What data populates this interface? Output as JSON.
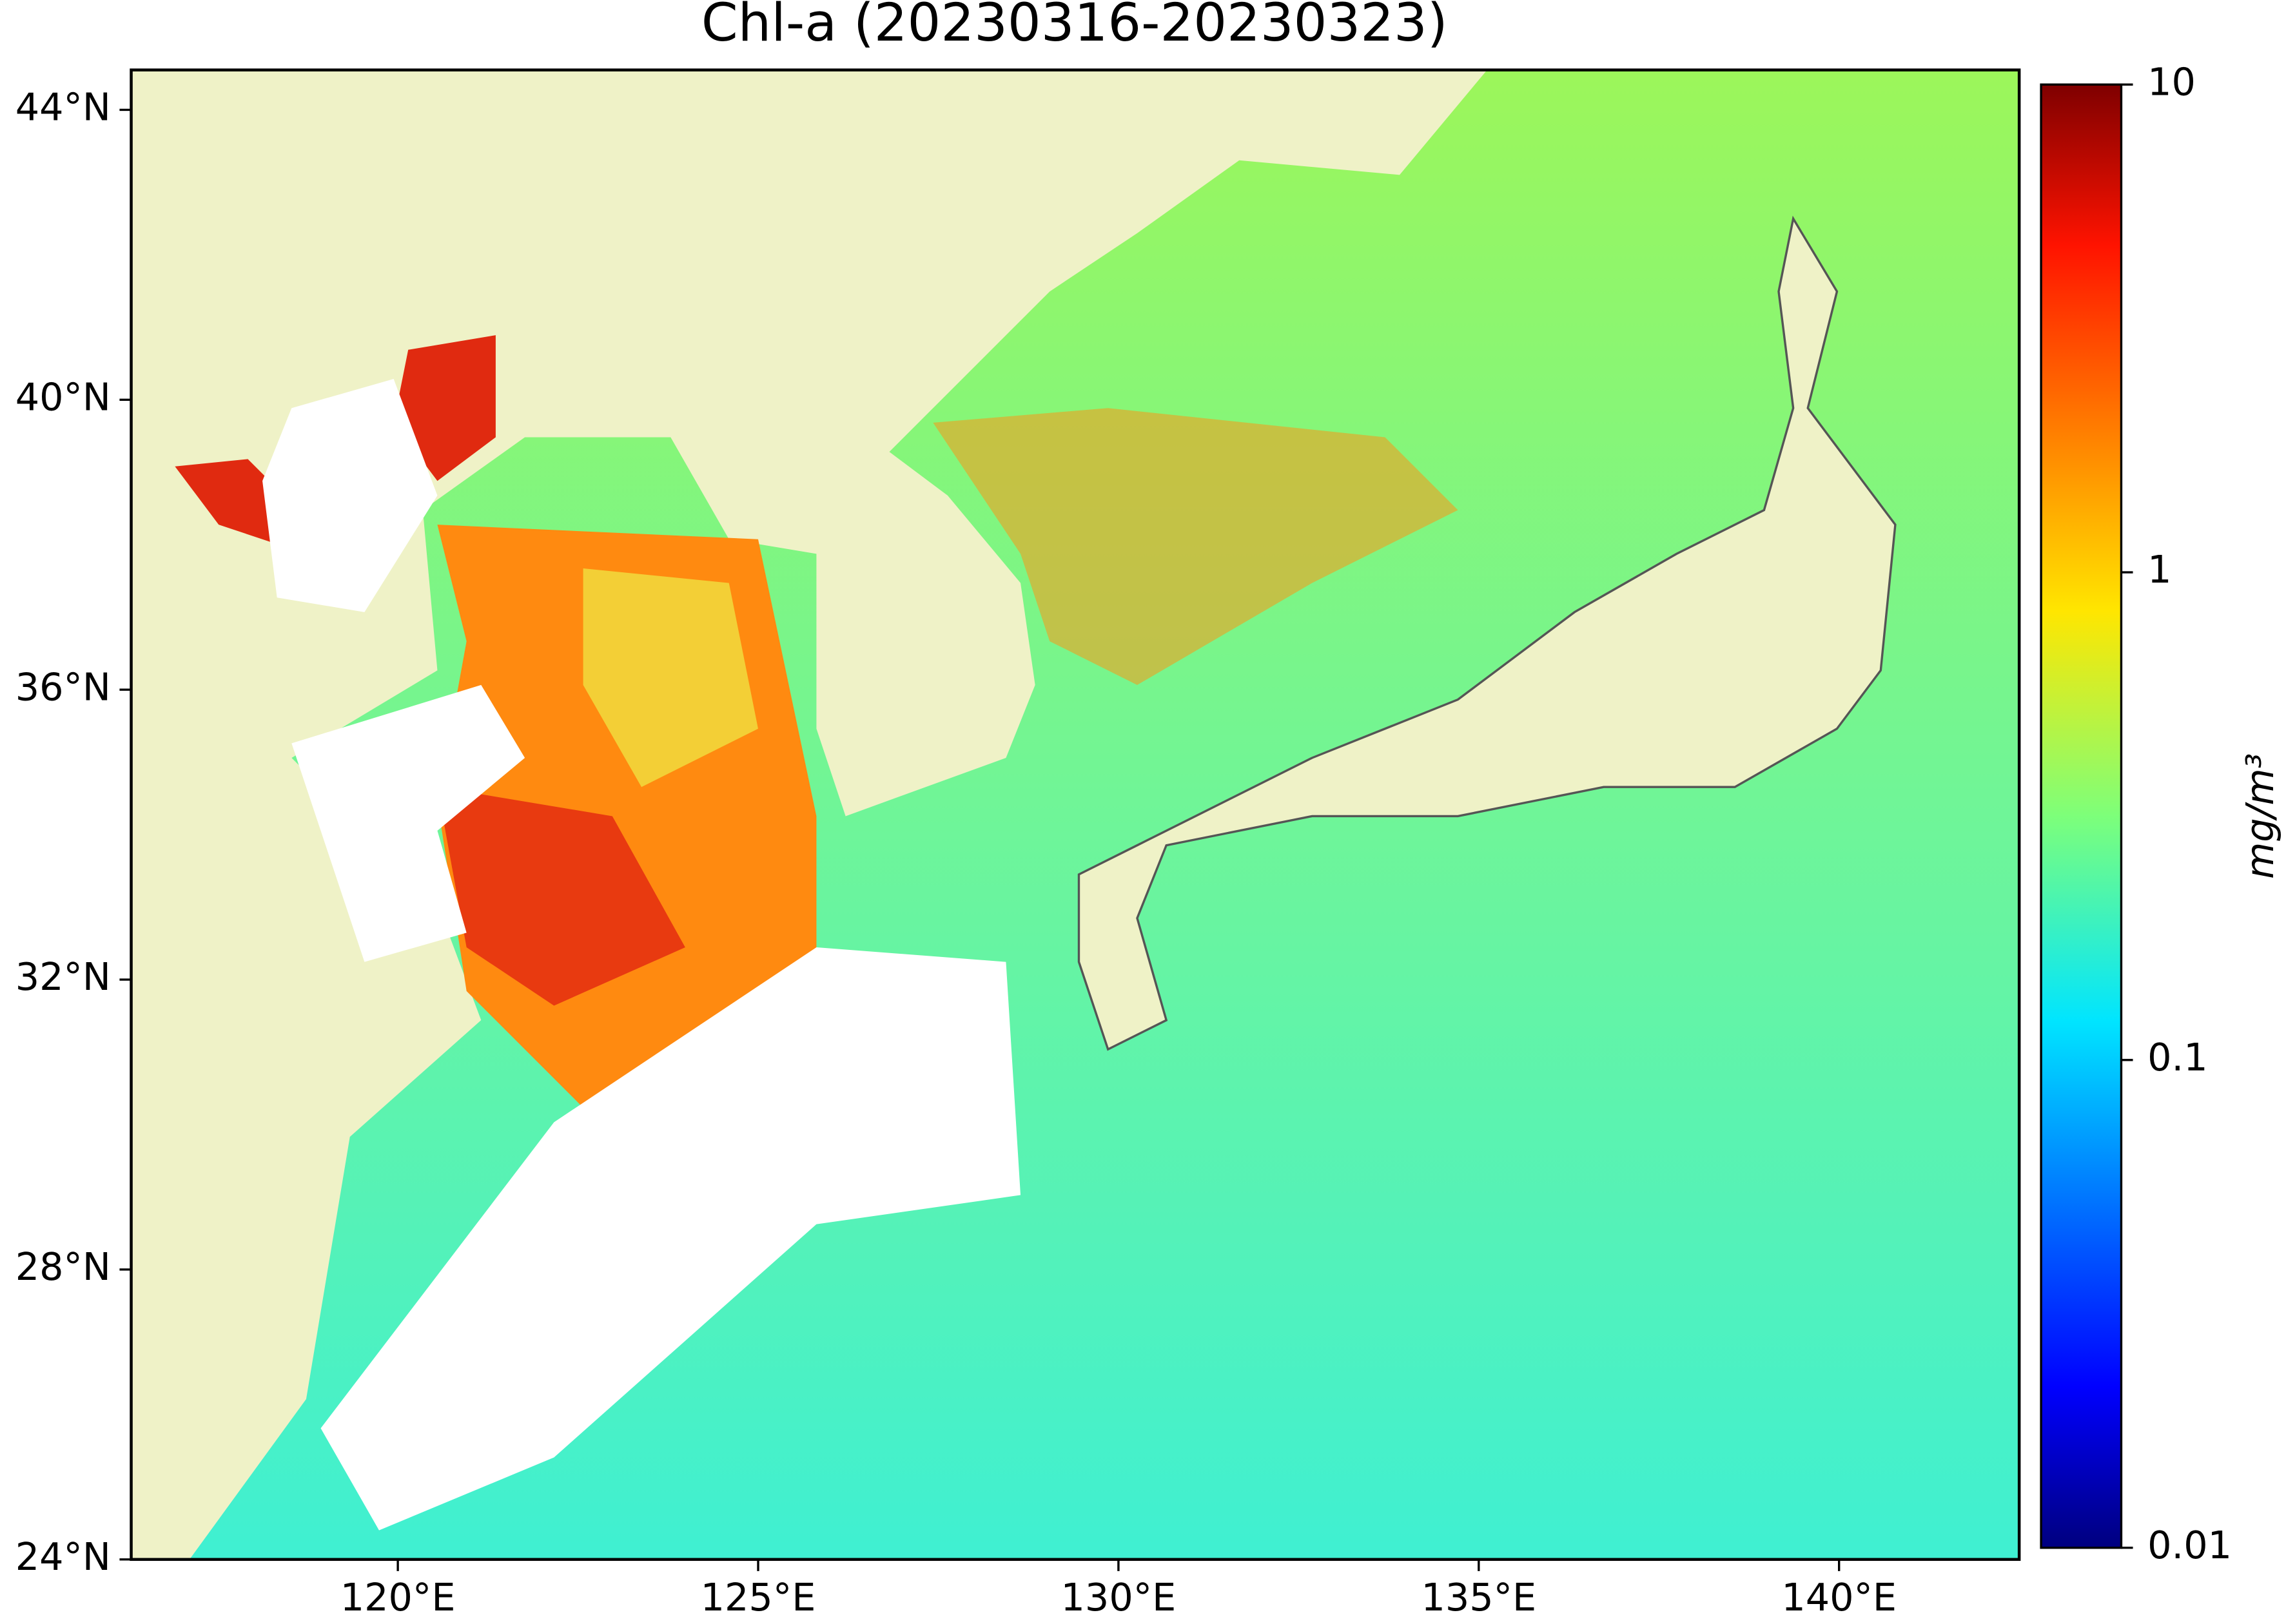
{
  "chart_data": {
    "type": "map",
    "title": "Chl-a (20230316-20230323)",
    "xlim": [
      116.3,
      142.5
    ],
    "ylim": [
      24,
      44.55
    ],
    "xticks": [
      {
        "value": 120,
        "label": "120°E"
      },
      {
        "value": 125,
        "label": "125°E"
      },
      {
        "value": 130,
        "label": "130°E"
      },
      {
        "value": 135,
        "label": "135°E"
      },
      {
        "value": 140,
        "label": "140°E"
      }
    ],
    "yticks": [
      {
        "value": 24,
        "label": "24°N"
      },
      {
        "value": 28,
        "label": "28°N"
      },
      {
        "value": 32,
        "label": "32°N"
      },
      {
        "value": 36,
        "label": "36°N"
      },
      {
        "value": 40,
        "label": "40°N"
      },
      {
        "value": 44,
        "label": "44°N"
      }
    ],
    "colorbar": {
      "label": "mg/m³",
      "lim": [
        0.01,
        10
      ],
      "ticks": [
        0.01,
        0.1,
        1,
        10
      ],
      "log_scale": true,
      "colormap": "jet"
    }
  }
}
